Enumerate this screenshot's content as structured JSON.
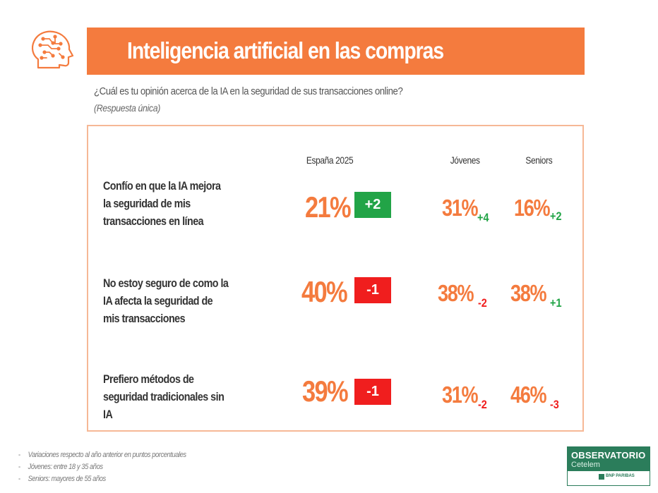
{
  "header": {
    "title": "Inteligencia artificial en las compras",
    "icon": "brain-circuit-icon",
    "accent_color": "#f47b3e"
  },
  "question": {
    "text": "¿Cuál es tu opinión acerca de la IA en la seguridad de sus transacciones online?",
    "note": "(Respuesta única)"
  },
  "columns": {
    "spain": "España 2025",
    "young": "Jóvenes",
    "seniors": "Seniors"
  },
  "rows": [
    {
      "label": "Confío en que la IA mejora la seguridad de mis transacciones en línea",
      "spain_pct": "21%",
      "spain_delta": "+2",
      "young_pct": "31%",
      "young_delta": "+4",
      "seniors_pct": "16%",
      "seniors_delta": "+2"
    },
    {
      "label": "No estoy seguro de como la IA afecta la seguridad de mis transacciones",
      "spain_pct": "40%",
      "spain_delta": "-1",
      "young_pct": "38%",
      "young_delta": "-2",
      "seniors_pct": "38%",
      "seniors_delta": "+1"
    },
    {
      "label": "Prefiero métodos de seguridad tradicionales sin IA",
      "spain_pct": "39%",
      "spain_delta": "-1",
      "young_pct": "31%",
      "young_delta": "-2",
      "seniors_pct": "46%",
      "seniors_delta": "-3"
    }
  ],
  "footnotes": [
    "Variaciones respecto al año anterior en puntos porcentuales",
    "Jóvenes: entre 18 y 35 años",
    "Seniors: mayores de 55 años"
  ],
  "logo": {
    "name": "OBSERVATORIO",
    "sub": "Cetelem",
    "group": "BNP PARIBAS",
    "color": "#2b7d5b"
  },
  "colors": {
    "positive": "#22a447",
    "negative": "#f01e1e"
  }
}
